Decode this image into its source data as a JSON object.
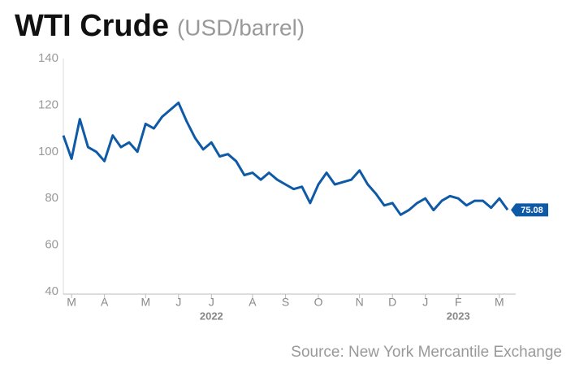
{
  "chart_data": {
    "type": "line",
    "title": "WTI Crude",
    "subtitle": "(USD/barrel)",
    "source": "Source: New York Mercantile Exchange",
    "years": [
      "2022",
      "2023"
    ],
    "categories": [
      null,
      "M",
      null,
      null,
      null,
      "A",
      null,
      null,
      null,
      null,
      "M",
      null,
      null,
      null,
      "J",
      null,
      null,
      null,
      "J",
      null,
      null,
      null,
      null,
      "A",
      null,
      null,
      null,
      "S",
      null,
      null,
      null,
      "O",
      null,
      null,
      null,
      null,
      "N",
      null,
      null,
      null,
      "D",
      null,
      null,
      null,
      "J",
      null,
      null,
      null,
      "F",
      null,
      null,
      null,
      null,
      "M",
      null
    ],
    "series": [
      {
        "name": "WTI Crude",
        "color": "#0e5aa7",
        "values": [
          107,
          97,
          114,
          102,
          100,
          96,
          107,
          102,
          104,
          100,
          112,
          110,
          115,
          118,
          121,
          113,
          106,
          101,
          104,
          98,
          99,
          96,
          90,
          91,
          88,
          91,
          88,
          86,
          84,
          85,
          78,
          86,
          91,
          86,
          87,
          88,
          92,
          86,
          82,
          77,
          78,
          73,
          75,
          78,
          80,
          75,
          79,
          81,
          80,
          77,
          79,
          79,
          76,
          80,
          75.08
        ]
      }
    ],
    "ylim": [
      40,
      140
    ],
    "yticks": [
      40,
      60,
      80,
      100,
      120,
      140
    ],
    "grid": false
  }
}
